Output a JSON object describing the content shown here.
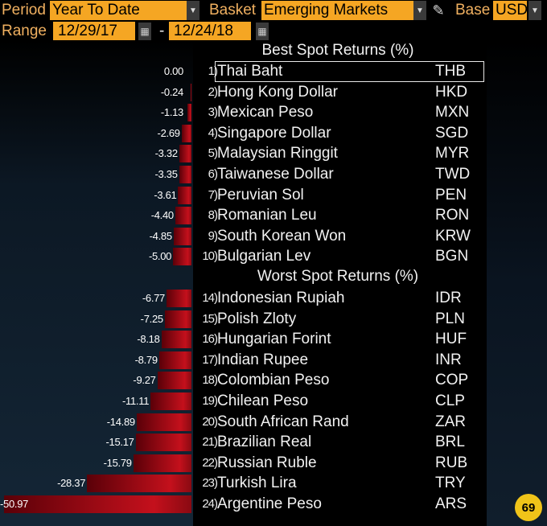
{
  "controls": {
    "period_label": "Period",
    "period_value": "Year To Date",
    "basket_label": "Basket",
    "basket_value": "Emerging Markets",
    "base_label": "Base",
    "base_value": "USD",
    "range_label": "Range",
    "range_start": "12/29/17",
    "range_separator": "-",
    "range_end": "12/24/18"
  },
  "best_header": "Best Spot Returns (%)",
  "worst_header": "Worst Spot Returns (%)",
  "best": [
    {
      "rank": "1)",
      "name": "Thai Baht",
      "code": "THB",
      "value_label": "0.00",
      "value": 0.0
    },
    {
      "rank": "2)",
      "name": "Hong Kong Dollar",
      "code": "HKD",
      "value_label": "-0.24",
      "value": -0.24
    },
    {
      "rank": "3)",
      "name": "Mexican Peso",
      "code": "MXN",
      "value_label": "-1.13",
      "value": -1.13
    },
    {
      "rank": "4)",
      "name": "Singapore Dollar",
      "code": "SGD",
      "value_label": "-2.69",
      "value": -2.69
    },
    {
      "rank": "5)",
      "name": "Malaysian Ringgit",
      "code": "MYR",
      "value_label": "-3.32",
      "value": -3.32
    },
    {
      "rank": "6)",
      "name": "Taiwanese Dollar",
      "code": "TWD",
      "value_label": "-3.35",
      "value": -3.35
    },
    {
      "rank": "7)",
      "name": "Peruvian Sol",
      "code": "PEN",
      "value_label": "-3.61",
      "value": -3.61
    },
    {
      "rank": "8)",
      "name": "Romanian Leu",
      "code": "RON",
      "value_label": "-4.40",
      "value": -4.4
    },
    {
      "rank": "9)",
      "name": "South Korean Won",
      "code": "KRW",
      "value_label": "-4.85",
      "value": -4.85
    },
    {
      "rank": "10)",
      "name": "Bulgarian Lev",
      "code": "BGN",
      "value_label": "-5.00",
      "value": -5.0
    }
  ],
  "worst": [
    {
      "rank": "14)",
      "name": "Indonesian Rupiah",
      "code": "IDR",
      "value_label": "-6.77",
      "value": -6.77
    },
    {
      "rank": "15)",
      "name": "Polish Zloty",
      "code": "PLN",
      "value_label": "-7.25",
      "value": -7.25
    },
    {
      "rank": "16)",
      "name": "Hungarian Forint",
      "code": "HUF",
      "value_label": "-8.18",
      "value": -8.18
    },
    {
      "rank": "17)",
      "name": "Indian Rupee",
      "code": "INR",
      "value_label": "-8.79",
      "value": -8.79
    },
    {
      "rank": "18)",
      "name": "Colombian Peso",
      "code": "COP",
      "value_label": "-9.27",
      "value": -9.27
    },
    {
      "rank": "19)",
      "name": "Chilean Peso",
      "code": "CLP",
      "value_label": "-11.11",
      "value": -11.11
    },
    {
      "rank": "20)",
      "name": "South African Rand",
      "code": "ZAR",
      "value_label": "-14.89",
      "value": -14.89
    },
    {
      "rank": "21)",
      "name": "Brazilian Real",
      "code": "BRL",
      "value_label": "-15.17",
      "value": -15.17
    },
    {
      "rank": "22)",
      "name": "Russian Ruble",
      "code": "RUB",
      "value_label": "-15.79",
      "value": -15.79
    },
    {
      "rank": "23)",
      "name": "Turkish Lira",
      "code": "TRY",
      "value_label": "-28.37",
      "value": -28.37
    },
    {
      "rank": "24)",
      "name": "Argentine Peso",
      "code": "ARS",
      "value_label": "-50.97",
      "value": -50.97
    }
  ],
  "logo_text": "69",
  "colors": {
    "accent": "#f5a623",
    "bar": "#c4101c",
    "background": "#000000"
  },
  "icons": {
    "dropdown": "chevron-down-icon",
    "calendar": "calendar-icon",
    "edit": "pencil-icon"
  }
}
